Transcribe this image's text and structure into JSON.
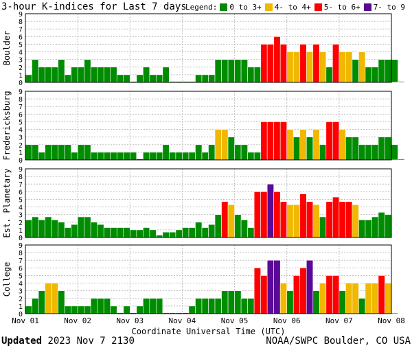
{
  "title": "3-hour K-indices for Last 7 days",
  "legend": {
    "label": "Legend:",
    "items": [
      {
        "label": "0 to 3+",
        "color": "#008c00"
      },
      {
        "label": "4- to 4+",
        "color": "#f0b800"
      },
      {
        "label": "5- to 6+",
        "color": "#ff0000"
      },
      {
        "label": "7- to 9",
        "color": "#5a0a96"
      }
    ]
  },
  "footer": {
    "updated_label": "Updated",
    "updated_value": "2023 Nov  7 2130",
    "credit": "NOAA/SWPC Boulder, CO USA"
  },
  "chart_data": {
    "type": "bar",
    "xlabel": "Coordinate Universal Time (UTC)",
    "x_ticks": [
      "Nov 01",
      "Nov 02",
      "Nov 03",
      "Nov 04",
      "Nov 05",
      "Nov 06",
      "Nov 07",
      "Nov 08"
    ],
    "ylim": [
      0,
      9
    ],
    "y_ticks": [
      0,
      1,
      2,
      3,
      4,
      5,
      6,
      7,
      8,
      9
    ],
    "grid": true,
    "color_scale": {
      "0-3": "#008c00",
      "4": "#f0b800",
      "5-6": "#ff0000",
      "7-9": "#5a0a96"
    },
    "panels": [
      {
        "name": "Boulder",
        "values": [
          1,
          3,
          2,
          2,
          2,
          3,
          1,
          2,
          2,
          3,
          2,
          2,
          2,
          2,
          1,
          1,
          0,
          1,
          2,
          1,
          1,
          2,
          0,
          0,
          0,
          0,
          1,
          1,
          1,
          3,
          3,
          3,
          3,
          3,
          2,
          2,
          5,
          5,
          6,
          5,
          4,
          4,
          5,
          4,
          5,
          4,
          2,
          5,
          4,
          4,
          3,
          4,
          2,
          2,
          3,
          3,
          3,
          0
        ]
      },
      {
        "name": "Fredericksburg",
        "values": [
          2,
          2,
          1,
          2,
          2,
          2,
          2,
          1,
          2,
          2,
          1,
          1,
          1,
          1,
          1,
          1,
          1,
          0,
          1,
          1,
          1,
          2,
          1,
          1,
          1,
          1,
          2,
          1,
          2,
          4,
          4,
          3,
          2,
          2,
          1,
          1,
          5,
          5,
          5,
          5,
          4,
          3,
          4,
          3,
          4,
          2,
          5,
          5,
          4,
          3,
          3,
          2,
          2,
          2,
          3,
          3,
          2,
          0
        ]
      },
      {
        "name": "Est. Planetary",
        "values": [
          2.3,
          2.7,
          2.3,
          2.7,
          2.3,
          2,
          1.3,
          1.7,
          2.7,
          2.7,
          2,
          1.7,
          1.3,
          1.3,
          1.3,
          1.3,
          1,
          1,
          1.3,
          1,
          0.3,
          0.7,
          0.7,
          1,
          1.3,
          1.3,
          2,
          1.3,
          1.7,
          3,
          4.7,
          4.3,
          3,
          2.3,
          1.3,
          6,
          6,
          7,
          6,
          4.7,
          4.3,
          4.3,
          5.7,
          4.7,
          4.3,
          2.7,
          4.7,
          5.3,
          4.7,
          4.7,
          4.3,
          2.3,
          2.3,
          2.7,
          3.3,
          3
        ]
      },
      {
        "name": "College",
        "values": [
          1,
          2,
          3,
          4,
          4,
          3,
          1,
          1,
          1,
          1,
          2,
          2,
          2,
          1,
          0,
          1,
          0,
          1,
          2,
          2,
          2,
          0,
          0,
          0,
          0,
          1,
          2,
          2,
          2,
          2,
          3,
          3,
          3,
          2,
          2,
          6,
          5,
          7,
          7,
          4,
          3,
          5,
          6,
          7,
          3,
          4,
          5,
          5,
          3,
          4,
          4,
          2,
          4,
          4,
          5,
          4,
          0
        ]
      }
    ]
  }
}
